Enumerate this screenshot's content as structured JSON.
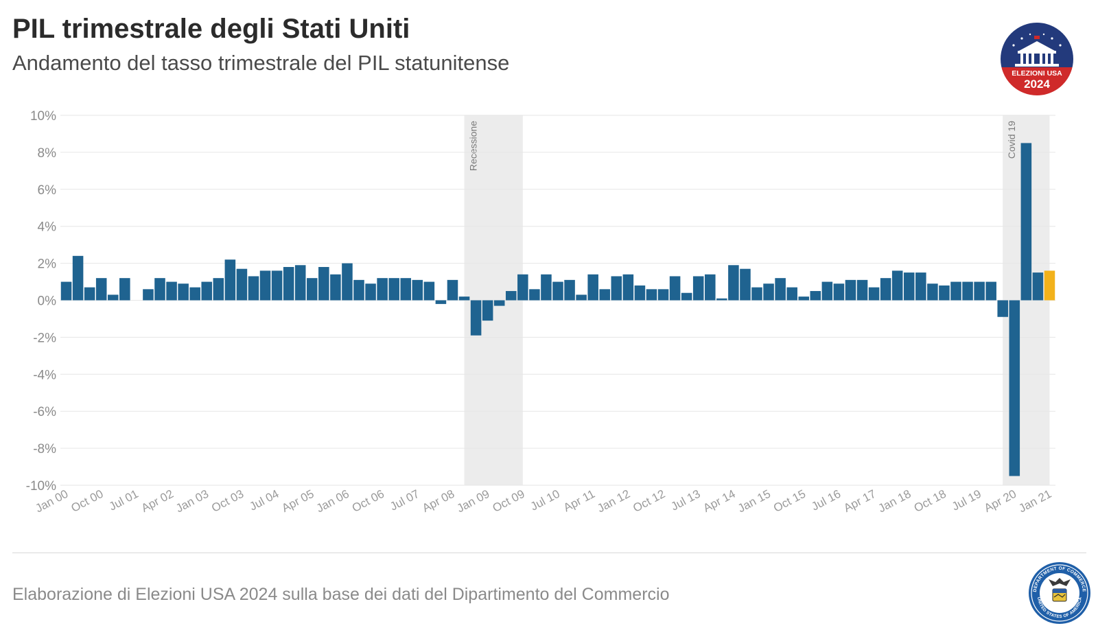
{
  "title": "PIL trimestrale degli Stati Uniti",
  "subtitle": "Andamento del tasso trimestrale del PIL statunitense",
  "source": "Elaborazione di Elezioni USA 2024 sulla base dei dati del Dipartimento del Commercio",
  "logo": {
    "text_top": "ELEZIONI USA",
    "text_bottom": "2024",
    "icon": "white-house-logo-icon"
  },
  "seal": {
    "icon": "department-of-commerce-seal-icon",
    "text_top": "DEPARTMENT OF COMMERCE",
    "text_bottom": "UNITED STATES OF AMERICA"
  },
  "colors": {
    "bar": "#1f6390",
    "highlight": "#f2b21b",
    "band": "#ececec",
    "grid": "#e6e6e6"
  },
  "chart_data": {
    "type": "bar",
    "ylim": [
      -10,
      10
    ],
    "y_ticks": [
      10,
      8,
      6,
      4,
      2,
      0,
      -2,
      -4,
      -6,
      -8,
      -10
    ],
    "y_tick_labels": [
      "10%",
      "8%",
      "6%",
      "4%",
      "2%",
      "0%",
      "-2%",
      "-4%",
      "-6%",
      "-8%",
      "-10%"
    ],
    "x_tick_labels": [
      "Jan 00",
      "Oct 00",
      "Jul 01",
      "Apr 02",
      "Jan 03",
      "Oct 03",
      "Jul 04",
      "Apr 05",
      "Jan 06",
      "Oct 06",
      "Jul 07",
      "Apr 08",
      "Jan 09",
      "Oct 09",
      "Jul 10",
      "Apr 11",
      "Jan 12",
      "Oct 12",
      "Jul 13",
      "Apr 14",
      "Jan 15",
      "Oct 15",
      "Jul 16",
      "Apr 17",
      "Jan 18",
      "Oct 18",
      "Jul 19",
      "Apr 20",
      "Jan 21"
    ],
    "x_tick_every": 3,
    "grid": true,
    "bands": [
      {
        "label": "Recessione",
        "start": 34.5,
        "end": 39.5
      },
      {
        "label": "Covid 19",
        "start": 80.5,
        "end": 84.5
      }
    ],
    "highlight_last": true,
    "values": [
      1.0,
      2.4,
      0.7,
      1.2,
      0.3,
      1.2,
      0.0,
      0.6,
      1.2,
      1.0,
      0.9,
      0.7,
      1.0,
      1.2,
      2.2,
      1.7,
      1.3,
      1.6,
      1.6,
      1.8,
      1.9,
      1.2,
      1.8,
      1.4,
      2.0,
      1.1,
      0.9,
      1.2,
      1.2,
      1.2,
      1.1,
      1.0,
      -0.2,
      1.1,
      0.2,
      -1.9,
      -1.1,
      -0.3,
      0.5,
      1.4,
      0.6,
      1.4,
      1.0,
      1.1,
      0.3,
      1.4,
      0.6,
      1.3,
      1.4,
      0.8,
      0.6,
      0.6,
      1.3,
      0.4,
      1.3,
      1.4,
      0.1,
      1.9,
      1.7,
      0.7,
      0.9,
      1.2,
      0.7,
      0.2,
      0.5,
      1.0,
      0.9,
      1.1,
      1.1,
      0.7,
      1.2,
      1.6,
      1.5,
      1.5,
      0.9,
      0.8,
      1.0,
      1.0,
      1.0,
      1.0,
      -0.9,
      -9.5,
      8.5,
      1.5,
      1.6
    ]
  }
}
